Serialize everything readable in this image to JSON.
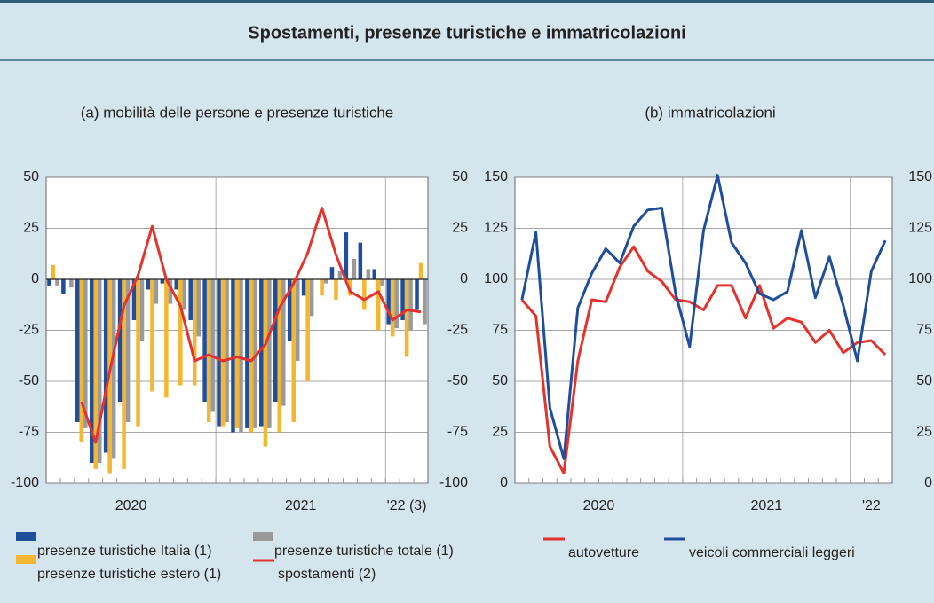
{
  "title": "Spostamenti, presenze turistiche e immatricolazioni",
  "chart_data": [
    {
      "type": "bar",
      "title": "(a) mobilità delle persone e presenze turistiche",
      "categories": [
        null,
        null,
        null,
        null,
        null,
        null,
        null,
        null,
        null,
        null,
        null,
        null,
        null,
        null,
        null,
        null,
        null,
        null,
        null,
        null,
        null,
        null,
        null,
        null,
        null,
        null,
        null
      ],
      "x_labels": [
        "2020",
        "2021",
        "'22 (3)"
      ],
      "ylim": [
        -100,
        50
      ],
      "yticks": [
        -100,
        -75,
        -50,
        -25,
        0,
        25,
        50
      ],
      "grid": true,
      "series": [
        {
          "name": "presenze turistiche Italia (1)",
          "color": "#1f4e9c",
          "values": [
            -3,
            -7,
            -70,
            -90,
            -85,
            -60,
            -20,
            -5,
            -2,
            -5,
            -20,
            -60,
            -72,
            -75,
            -73,
            -72,
            -60,
            -30,
            -8,
            0,
            6,
            23,
            18,
            5,
            -22,
            -20,
            -15
          ]
        },
        {
          "name": "presenze turistiche estero (1)",
          "color": "#f5b731",
          "values": [
            7,
            0,
            -80,
            -93,
            -95,
            -93,
            -72,
            -55,
            -58,
            -52,
            -52,
            -70,
            -72,
            -73,
            -75,
            -82,
            -75,
            -70,
            -50,
            -8,
            -10,
            -8,
            -15,
            -25,
            -28,
            -38,
            8
          ]
        },
        {
          "name": "presenze turistiche totale (1)",
          "color": "#9a9a9a",
          "values": [
            -3,
            -4,
            -73,
            -90,
            -88,
            -70,
            -30,
            -12,
            -12,
            -15,
            -28,
            -65,
            -70,
            -75,
            -73,
            -73,
            -62,
            -40,
            -18,
            -2,
            4,
            10,
            5,
            -3,
            -24,
            -25,
            -22
          ]
        },
        {
          "name": "spostamenti (2)",
          "type": "line",
          "color": "#e5322d",
          "values": [
            null,
            null,
            -60,
            -80,
            -45,
            -13,
            2,
            26,
            0,
            -13,
            -40,
            -37,
            -40,
            -38,
            -40,
            -32,
            -14,
            -2,
            13,
            35,
            12,
            -6,
            -10,
            -6,
            -20,
            -15,
            -16
          ]
        }
      ]
    },
    {
      "type": "line",
      "title": "(b) immatricolazioni",
      "categories": [
        null,
        null,
        null,
        null,
        null,
        null,
        null,
        null,
        null,
        null,
        null,
        null,
        null,
        null,
        null,
        null,
        null,
        null,
        null,
        null,
        null,
        null,
        null,
        null,
        null,
        null,
        null
      ],
      "x_labels": [
        "2020",
        "2021",
        "'22"
      ],
      "ylim": [
        0,
        150
      ],
      "yticks": [
        0,
        25,
        50,
        75,
        100,
        125,
        150
      ],
      "grid": true,
      "series": [
        {
          "name": "autovetture",
          "color": "#e5322d",
          "values": [
            90,
            82,
            18,
            5,
            60,
            90,
            89,
            106,
            116,
            104,
            99,
            90,
            89,
            85,
            97,
            97,
            81,
            97,
            76,
            81,
            79,
            69,
            75,
            64,
            69,
            70,
            63
          ]
        },
        {
          "name": "veicoli commerciali leggeri",
          "color": "#1f4e9c",
          "values": [
            90,
            123,
            37,
            12,
            86,
            103,
            115,
            108,
            126,
            134,
            135,
            93,
            67,
            124,
            151,
            118,
            108,
            93,
            90,
            94,
            124,
            91,
            111,
            87,
            60,
            104,
            119
          ]
        }
      ]
    }
  ]
}
